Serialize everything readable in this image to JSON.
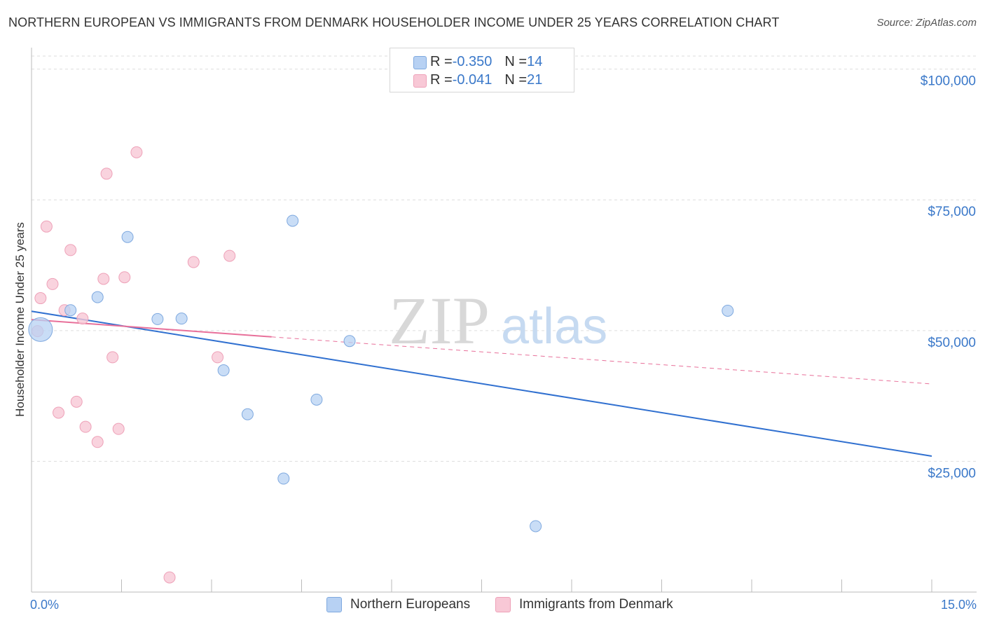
{
  "title": "NORTHERN EUROPEAN VS IMMIGRANTS FROM DENMARK HOUSEHOLDER INCOME UNDER 25 YEARS CORRELATION CHART",
  "source": "Source: ZipAtlas.com",
  "watermark": {
    "zip": "ZIP",
    "atlas": "atlas"
  },
  "legend_top": {
    "rows": [
      {
        "r_label": "R = ",
        "r_value": "-0.350",
        "n_label": "N = ",
        "n_value": "14"
      },
      {
        "r_label": "R = ",
        "r_value": "-0.041",
        "n_label": "N = ",
        "n_value": "21"
      }
    ]
  },
  "legend_bottom": [
    "Northern Europeans",
    "Immigrants from Denmark"
  ],
  "colors": {
    "blue_fill": "#b7d1f3",
    "blue_stroke": "#7fa9df",
    "blue_line": "#3070d0",
    "pink_fill": "#f8c8d6",
    "pink_stroke": "#eea1b8",
    "pink_line": "#e8709a",
    "tick_text": "#3a78c9",
    "grid": "#dddddd"
  },
  "chart_data": {
    "type": "scatter",
    "title": "NORTHERN EUROPEAN VS IMMIGRANTS FROM DENMARK HOUSEHOLDER INCOME UNDER 25 YEARS CORRELATION CHART",
    "xlabel": "",
    "ylabel": "Householder Income Under 25 years",
    "xlim": [
      0,
      15
    ],
    "ylim": [
      0,
      102500
    ],
    "x_tick_labels": [
      "0.0%",
      "15.0%"
    ],
    "y_ticks": [
      {
        "value": 25000,
        "label": "$25,000"
      },
      {
        "value": 50000,
        "label": "$50,000"
      },
      {
        "value": 75000,
        "label": "$75,000"
      },
      {
        "value": 100000,
        "label": "$100,000"
      }
    ],
    "series": [
      {
        "name": "Northern Europeans",
        "color": "blue",
        "r": -0.35,
        "n": 14,
        "points": [
          {
            "x": 0.15,
            "y": 50200,
            "big": true
          },
          {
            "x": 0.65,
            "y": 53900
          },
          {
            "x": 1.1,
            "y": 56400
          },
          {
            "x": 1.6,
            "y": 67900
          },
          {
            "x": 2.1,
            "y": 52200
          },
          {
            "x": 2.5,
            "y": 52300
          },
          {
            "x": 3.2,
            "y": 42400
          },
          {
            "x": 3.6,
            "y": 34000
          },
          {
            "x": 4.2,
            "y": 21700
          },
          {
            "x": 4.35,
            "y": 71000
          },
          {
            "x": 4.75,
            "y": 36800
          },
          {
            "x": 5.3,
            "y": 48000
          },
          {
            "x": 8.4,
            "y": 12600
          },
          {
            "x": 11.6,
            "y": 53800
          }
        ],
        "trend": {
          "x0": 0.0,
          "y0": 53700,
          "x1": 15.0,
          "y1": 26000
        }
      },
      {
        "name": "Immigrants from Denmark",
        "color": "pink",
        "r": -0.041,
        "n": 21,
        "points": [
          {
            "x": 0.1,
            "y": 49900
          },
          {
            "x": 0.15,
            "y": 56200
          },
          {
            "x": 0.25,
            "y": 69900
          },
          {
            "x": 0.35,
            "y": 58900
          },
          {
            "x": 0.45,
            "y": 34300
          },
          {
            "x": 0.55,
            "y": 53900
          },
          {
            "x": 0.65,
            "y": 65400
          },
          {
            "x": 0.75,
            "y": 36400
          },
          {
            "x": 0.85,
            "y": 52300
          },
          {
            "x": 0.9,
            "y": 31600
          },
          {
            "x": 1.1,
            "y": 28700
          },
          {
            "x": 1.2,
            "y": 59900
          },
          {
            "x": 1.25,
            "y": 80000
          },
          {
            "x": 1.35,
            "y": 44900
          },
          {
            "x": 1.45,
            "y": 31200
          },
          {
            "x": 1.55,
            "y": 60200
          },
          {
            "x": 1.75,
            "y": 84100
          },
          {
            "x": 2.3,
            "y": 2800
          },
          {
            "x": 2.7,
            "y": 63100
          },
          {
            "x": 3.1,
            "y": 44900
          },
          {
            "x": 3.3,
            "y": 64300
          }
        ],
        "trend_solid": {
          "x0": 0.0,
          "y0": 52100,
          "x1": 4.0,
          "y1": 48800
        },
        "trend_dashed": {
          "x0": 4.0,
          "y0": 48800,
          "x1": 15.0,
          "y1": 39800
        }
      }
    ]
  }
}
